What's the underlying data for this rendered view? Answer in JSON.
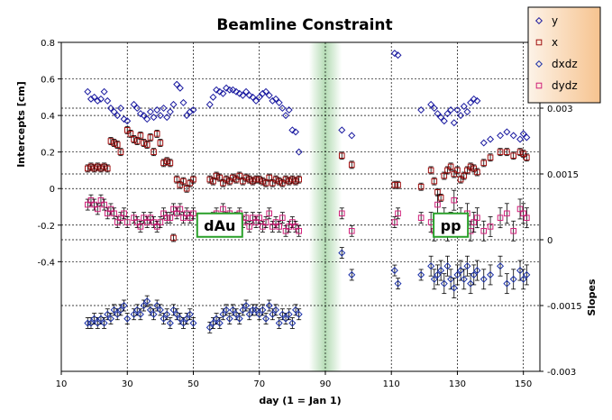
{
  "chart_data": {
    "type": "scatter",
    "title": "Beamline Constraint",
    "xlabel": "day (1 = Jan 1)",
    "ylabel": "Intercepts [cm]",
    "y2label": "Slopes",
    "xlim": [
      10,
      155
    ],
    "ylim": [
      -1.0,
      0.8
    ],
    "y2lim": [
      -0.003,
      0.0045
    ],
    "x_ticks": [
      "10",
      "30",
      "50",
      "70",
      "90",
      "110",
      "130",
      "150"
    ],
    "y_ticks": [
      "0.8",
      "0.6",
      "0.4",
      "0.2",
      "0",
      "-0.2",
      "-0.4"
    ],
    "y2_ticks": [
      "0.003",
      "0.0015",
      "0",
      "-0.0015",
      "-0.003"
    ],
    "grid": true,
    "legend_position": "top-right",
    "colors": {
      "y": "#1a1aa0",
      "x": "#a01010",
      "dxdz": "#1a30a8",
      "dydz": "#d0207a",
      "highlight_band": "#2a9a2a",
      "annotation_border": "#2aa02a",
      "legend_bg": "#f8c898"
    },
    "highlight_band": {
      "x_center": 90,
      "half_width": 5
    },
    "annotations": [
      {
        "text": "dAu",
        "x": 58,
        "y": -0.2
      },
      {
        "text": "pp",
        "x": 128,
        "y": -0.2
      }
    ],
    "series": [
      {
        "name": "y",
        "axis": "left",
        "marker": "diamond",
        "x": [
          18,
          19,
          20,
          21,
          22,
          23,
          24,
          25,
          26,
          27,
          28,
          29,
          30,
          32,
          33,
          34,
          35,
          36,
          37,
          38,
          39,
          40,
          41,
          42,
          43,
          44,
          45,
          46,
          47,
          48,
          49,
          50,
          55,
          56,
          57,
          58,
          59,
          60,
          61,
          62,
          63,
          64,
          65,
          66,
          67,
          68,
          69,
          70,
          71,
          72,
          73,
          74,
          75,
          76,
          77,
          78,
          79,
          80,
          81,
          82,
          95,
          98,
          111,
          112,
          119,
          122,
          123,
          124,
          125,
          126,
          127,
          128,
          129,
          130,
          131,
          132,
          133,
          134,
          135,
          136,
          138,
          140,
          143,
          145,
          147,
          149,
          150,
          151
        ],
        "y": [
          0.53,
          0.49,
          0.5,
          0.48,
          0.49,
          0.53,
          0.48,
          0.44,
          0.42,
          0.4,
          0.44,
          0.38,
          0.37,
          0.46,
          0.44,
          0.41,
          0.4,
          0.38,
          0.42,
          0.39,
          0.43,
          0.4,
          0.44,
          0.39,
          0.42,
          0.46,
          0.57,
          0.55,
          0.47,
          0.4,
          0.42,
          0.43,
          0.46,
          0.5,
          0.54,
          0.53,
          0.52,
          0.55,
          0.54,
          0.54,
          0.53,
          0.52,
          0.51,
          0.53,
          0.51,
          0.5,
          0.48,
          0.5,
          0.52,
          0.53,
          0.51,
          0.48,
          0.49,
          0.47,
          0.44,
          0.4,
          0.43,
          0.32,
          0.31,
          0.2,
          0.32,
          0.29,
          0.74,
          0.73,
          0.43,
          0.46,
          0.44,
          0.41,
          0.39,
          0.37,
          0.41,
          0.43,
          0.36,
          0.43,
          0.4,
          0.45,
          0.42,
          0.47,
          0.49,
          0.48,
          0.25,
          0.27,
          0.29,
          0.31,
          0.29,
          0.27,
          0.3,
          0.28
        ]
      },
      {
        "name": "x",
        "axis": "left",
        "marker": "square",
        "x": [
          18,
          19,
          20,
          21,
          22,
          23,
          24,
          25,
          26,
          27,
          28,
          30,
          31,
          32,
          33,
          34,
          35,
          36,
          37,
          38,
          39,
          40,
          41,
          42,
          43,
          44,
          45,
          46,
          47,
          48,
          49,
          50,
          55,
          56,
          57,
          58,
          59,
          60,
          61,
          62,
          63,
          64,
          65,
          66,
          67,
          68,
          69,
          70,
          71,
          72,
          73,
          74,
          75,
          76,
          77,
          78,
          79,
          80,
          81,
          82,
          95,
          98,
          111,
          112,
          119,
          122,
          123,
          124,
          125,
          126,
          127,
          128,
          129,
          130,
          131,
          132,
          133,
          134,
          135,
          136,
          138,
          140,
          143,
          145,
          147,
          149,
          150,
          151
        ],
        "y": [
          0.11,
          0.12,
          0.11,
          0.12,
          0.11,
          0.12,
          0.11,
          0.26,
          0.25,
          0.24,
          0.2,
          0.32,
          0.3,
          0.27,
          0.26,
          0.29,
          0.25,
          0.24,
          0.28,
          0.2,
          0.3,
          0.25,
          0.14,
          0.15,
          0.14,
          -0.27,
          0.05,
          0.02,
          0.04,
          0.0,
          0.03,
          0.05,
          0.05,
          0.04,
          0.07,
          0.06,
          0.03,
          0.05,
          0.04,
          0.06,
          0.05,
          0.07,
          0.04,
          0.06,
          0.05,
          0.04,
          0.05,
          0.05,
          0.04,
          0.03,
          0.06,
          0.03,
          0.05,
          0.04,
          0.03,
          0.05,
          0.04,
          0.05,
          0.04,
          0.05,
          0.18,
          0.13,
          0.02,
          0.02,
          0.01,
          0.1,
          0.04,
          -0.02,
          -0.05,
          0.07,
          0.1,
          0.12,
          0.08,
          0.1,
          0.05,
          0.07,
          0.1,
          0.12,
          0.11,
          0.09,
          0.14,
          0.17,
          0.2,
          0.2,
          0.18,
          0.2,
          0.19,
          0.17
        ]
      },
      {
        "name": "dxdz",
        "axis": "right",
        "marker": "diamond",
        "x": [
          18,
          19,
          20,
          21,
          22,
          23,
          24,
          25,
          26,
          27,
          28,
          29,
          30,
          32,
          33,
          34,
          35,
          36,
          37,
          38,
          39,
          40,
          41,
          42,
          43,
          44,
          45,
          46,
          47,
          48,
          49,
          50,
          55,
          56,
          57,
          58,
          59,
          60,
          61,
          62,
          63,
          64,
          65,
          66,
          67,
          68,
          69,
          70,
          71,
          72,
          73,
          74,
          75,
          76,
          77,
          78,
          79,
          80,
          81,
          82,
          95,
          98,
          111,
          112,
          119,
          122,
          123,
          124,
          125,
          126,
          127,
          128,
          129,
          130,
          131,
          132,
          133,
          134,
          135,
          136,
          138,
          140,
          143,
          145,
          147,
          149,
          150,
          151
        ],
        "y": [
          -0.0019,
          -0.0019,
          -0.0018,
          -0.0019,
          -0.0018,
          -0.0019,
          -0.0017,
          -0.0018,
          -0.0016,
          -0.0017,
          -0.0016,
          -0.0015,
          -0.0018,
          -0.0017,
          -0.0016,
          -0.0017,
          -0.0015,
          -0.0014,
          -0.0016,
          -0.0017,
          -0.0015,
          -0.0016,
          -0.0018,
          -0.0017,
          -0.0019,
          -0.0016,
          -0.0017,
          -0.0018,
          -0.0019,
          -0.0018,
          -0.0017,
          -0.0019,
          -0.002,
          -0.0019,
          -0.0018,
          -0.0019,
          -0.0017,
          -0.0016,
          -0.0018,
          -0.0016,
          -0.0017,
          -0.0018,
          -0.0016,
          -0.0015,
          -0.0017,
          -0.0016,
          -0.0016,
          -0.0017,
          -0.0016,
          -0.0018,
          -0.0015,
          -0.0017,
          -0.0016,
          -0.0019,
          -0.0017,
          -0.0018,
          -0.0017,
          -0.0019,
          -0.0016,
          -0.0017,
          -0.0003,
          -0.0008,
          -0.0007,
          -0.001,
          -0.0008,
          -0.0006,
          -0.0009,
          -0.0008,
          -0.0007,
          -0.001,
          -0.0006,
          -0.0009,
          -0.0011,
          -0.0008,
          -0.0007,
          -0.0009,
          -0.0006,
          -0.001,
          -0.0008,
          -0.0007,
          -0.0009,
          -0.0008,
          -0.0006,
          -0.001,
          -0.0009,
          -0.0007,
          -0.0009,
          -0.0008
        ]
      },
      {
        "name": "dydz",
        "axis": "right",
        "marker": "square",
        "x": [
          18,
          19,
          20,
          21,
          22,
          23,
          24,
          25,
          26,
          27,
          28,
          29,
          30,
          32,
          33,
          34,
          35,
          36,
          37,
          38,
          39,
          40,
          41,
          42,
          43,
          44,
          45,
          46,
          47,
          48,
          49,
          50,
          55,
          56,
          57,
          58,
          59,
          60,
          61,
          62,
          63,
          64,
          65,
          66,
          67,
          68,
          69,
          70,
          71,
          72,
          73,
          74,
          75,
          76,
          77,
          78,
          79,
          80,
          81,
          82,
          95,
          98,
          111,
          112,
          119,
          122,
          123,
          124,
          125,
          126,
          127,
          128,
          129,
          130,
          131,
          132,
          133,
          134,
          135,
          136,
          138,
          140,
          143,
          145,
          147,
          149,
          150,
          151
        ],
        "y": [
          0.0008,
          0.0009,
          0.0008,
          0.0007,
          0.0009,
          0.0008,
          0.0006,
          0.0007,
          0.0006,
          0.0004,
          0.0005,
          0.0006,
          0.0004,
          0.0005,
          0.0004,
          0.0003,
          0.0005,
          0.0004,
          0.0005,
          0.0004,
          0.0003,
          0.0004,
          0.0006,
          0.0005,
          0.0005,
          0.0007,
          0.0006,
          0.0007,
          0.0005,
          0.0006,
          0.0005,
          0.0006,
          0.0003,
          0.0005,
          0.0006,
          0.0004,
          0.0007,
          0.0005,
          0.0006,
          0.0004,
          0.0005,
          0.0006,
          0.0004,
          0.0005,
          0.0003,
          0.0005,
          0.0004,
          0.0005,
          0.0003,
          0.0004,
          0.0006,
          0.0003,
          0.0004,
          0.0003,
          0.0005,
          0.0002,
          0.0003,
          0.0004,
          0.0003,
          0.0002,
          0.0006,
          0.0002,
          0.0004,
          0.0006,
          0.0005,
          0.0004,
          0.0002,
          0.0008,
          0.0003,
          0.0005,
          0.0002,
          0.0004,
          0.0009,
          0.0003,
          0.0005,
          0.0003,
          0.0006,
          0.0002,
          0.0004,
          0.0005,
          0.0002,
          0.0003,
          0.0005,
          0.0006,
          0.0002,
          0.0007,
          0.0006,
          0.0005
        ]
      }
    ]
  }
}
